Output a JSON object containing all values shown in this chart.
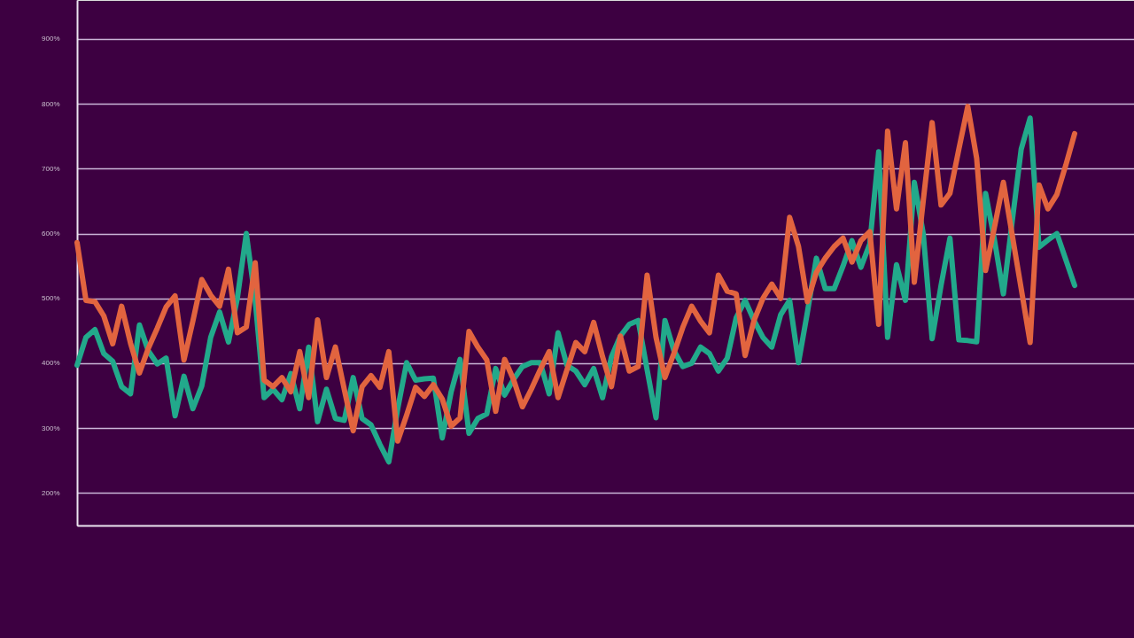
{
  "chart_data": {
    "type": "line",
    "categories": [
      null,
      null,
      null,
      null,
      null,
      null,
      null,
      null,
      null,
      null,
      null,
      null,
      null,
      null,
      null,
      null,
      null,
      null,
      null,
      null,
      null,
      null,
      null,
      null,
      null,
      null,
      null,
      null,
      null,
      null,
      null,
      null,
      null,
      null,
      null,
      null,
      null,
      null,
      null,
      null,
      null,
      null,
      null,
      null,
      null,
      null,
      null,
      null,
      null,
      null,
      null,
      null,
      null,
      null,
      null,
      null,
      null,
      null,
      null,
      null,
      null,
      null,
      null,
      null,
      null,
      null,
      null,
      null,
      null,
      null,
      null,
      null,
      null,
      null,
      null,
      null,
      null,
      null,
      null,
      null,
      null,
      null,
      null,
      null,
      null,
      null,
      null,
      null,
      null,
      null,
      null,
      null,
      null,
      null,
      null,
      null,
      null,
      null,
      null,
      null,
      null,
      null,
      null,
      null,
      null,
      null,
      null,
      null,
      null,
      null,
      null,
      null,
      null
    ],
    "series": [
      {
        "color": "#22a98b",
        "values": [
          397,
          440,
          452,
          415,
          403,
          364,
          353,
          459,
          419,
          399,
          408,
          319,
          380,
          330,
          365,
          440,
          479,
          433,
          501,
          600,
          497,
          347,
          360,
          344,
          384,
          330,
          425,
          310,
          360,
          315,
          312,
          378,
          315,
          305,
          275,
          248,
          330,
          401,
          374,
          376,
          377,
          285,
          356,
          406,
          292,
          315,
          322,
          392,
          351,
          375,
          395,
          401,
          401,
          353,
          447,
          397,
          388,
          367,
          392,
          347,
          410,
          442,
          460,
          466,
          390,
          316,
          466,
          420,
          395,
          400,
          425,
          415,
          388,
          408,
          470,
          497,
          466,
          440,
          425,
          475,
          497,
          401,
          479,
          562,
          515,
          515,
          550,
          589,
          548,
          584,
          726,
          440,
          552,
          497,
          679,
          600,
          438,
          520,
          593,
          436,
          435,
          433,
          662,
          590,
          507,
          620,
          730,
          778,
          579,
          590,
          600,
          560,
          520
        ]
      },
      {
        "color": "#e2643f",
        "values": [
          586,
          497,
          495,
          473,
          430,
          488,
          431,
          385,
          423,
          454,
          487,
          504,
          405,
          465,
          529,
          505,
          488,
          545,
          447,
          456,
          555,
          374,
          364,
          378,
          356,
          418,
          347,
          467,
          378,
          425,
          360,
          296,
          364,
          381,
          363,
          418,
          280,
          320,
          363,
          349,
          367,
          345,
          303,
          316,
          449,
          425,
          405,
          326,
          406,
          375,
          333,
          360,
          390,
          418,
          347,
          390,
          432,
          418,
          463,
          410,
          364,
          442,
          388,
          395,
          536,
          440,
          378,
          415,
          455,
          488,
          465,
          447,
          536,
          511,
          507,
          412,
          466,
          500,
          522,
          500,
          625,
          580,
          495,
          540,
          562,
          580,
          593,
          556,
          589,
          603,
          460,
          758,
          638,
          740,
          525,
          650,
          771,
          644,
          662,
          730,
          796,
          716,
          543,
          610,
          679,
          597,
          515,
          432,
          675,
          638,
          660,
          705,
          754
        ]
      }
    ],
    "ylim": [
      150,
      960
    ],
    "yticks": [
      {
        "value": 200,
        "label": "200%"
      },
      {
        "value": 300,
        "label": "300%"
      },
      {
        "value": 400,
        "label": "400%"
      },
      {
        "value": 500,
        "label": "500%"
      },
      {
        "value": 600,
        "label": "600%"
      },
      {
        "value": 700,
        "label": "700%"
      },
      {
        "value": 800,
        "label": "800%"
      },
      {
        "value": 900,
        "label": "900%"
      }
    ],
    "grid": "y",
    "tick_labels": "y"
  }
}
